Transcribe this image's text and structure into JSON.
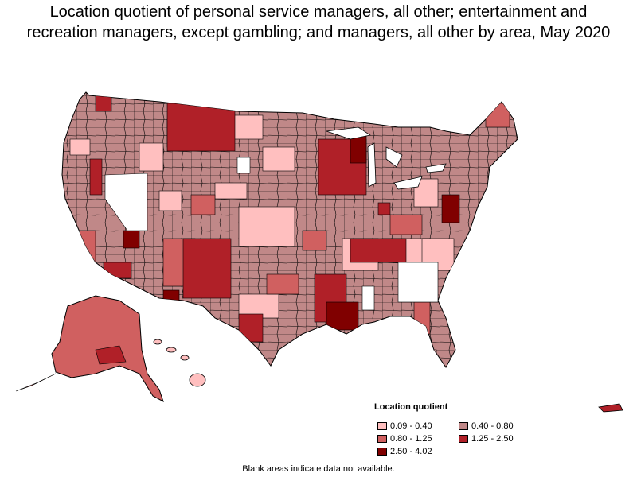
{
  "title": {
    "line1": "Location quotient of personal service managers, all other; entertainment and",
    "line2": "recreation managers, except gambling; and managers, all other by area, May 2020"
  },
  "legend": {
    "title": "Location quotient",
    "items": [
      {
        "label": "0.09 - 0.40",
        "color": "#ffbfbf"
      },
      {
        "label": "0.40 - 0.80",
        "color": "#c08888"
      },
      {
        "label": "0.80 - 1.25",
        "color": "#d06060"
      },
      {
        "label": "1.25 - 2.50",
        "color": "#b02028"
      },
      {
        "label": "2.50 - 4.02",
        "color": "#800000"
      }
    ]
  },
  "footnote": "Blank areas indicate data not available.",
  "colors": {
    "border": "#000000",
    "no_data": "#ffffff"
  }
}
